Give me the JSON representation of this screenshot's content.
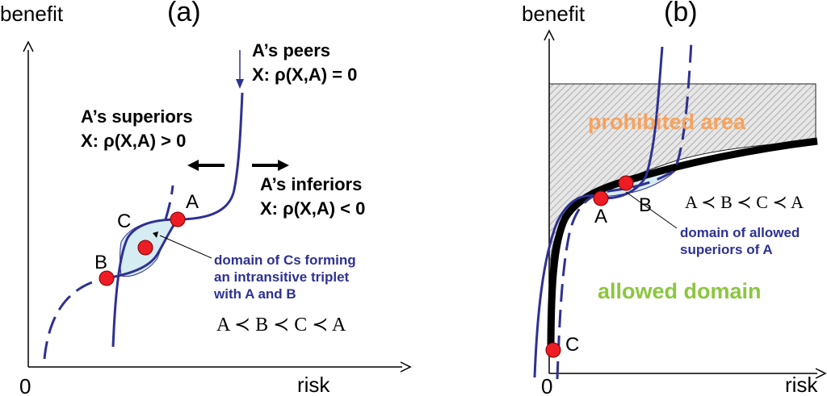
{
  "panel_a": {
    "label": "(a)",
    "y_axis_label": "benefit",
    "x_axis_label": "risk",
    "origin_label": "0",
    "peers_title": "A’s peers",
    "peers_formula": "X:  ρ(X,A) = 0",
    "superiors_title": "A’s superiors",
    "superiors_formula": "X: ρ(X,A) > 0",
    "inferiors_title": "A’s inferiors",
    "inferiors_formula": "X: ρ(X,A) < 0",
    "point_a": "A",
    "point_b": "B",
    "point_c": "C",
    "domain_note_line1": "domain of Cs forming",
    "domain_note_line2": "an intransitive triplet",
    "domain_note_line3": "with A and B",
    "relation": "A ≺ B ≺ C ≺ A"
  },
  "panel_b": {
    "label": "(b)",
    "y_axis_label": "benefit",
    "x_axis_label": "risk",
    "origin_label": "0",
    "prohibited_label": "prohibited  area",
    "allowed_label": "allowed domain",
    "point_a": "A",
    "point_b": "B",
    "point_c": "C",
    "relation": "A ≺ B ≺ C ≺ A",
    "domain_note_line1": "domain of allowed",
    "domain_note_line2": "superiors of A"
  },
  "colors": {
    "curve": "#2e3192",
    "point": "#ee1c24",
    "domain_fill": "#d6ecf3",
    "prohibited_text": "#f7a25c",
    "allowed_text": "#8cc63f",
    "axis": "#000000"
  }
}
